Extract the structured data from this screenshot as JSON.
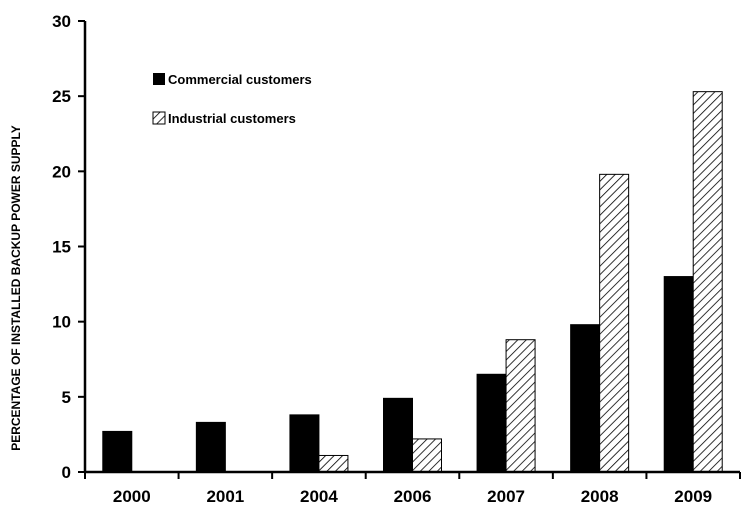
{
  "chart_data": {
    "type": "bar",
    "title": "",
    "xlabel": "",
    "ylabel": "PERCENTAGE OF INSTALLED BACKUP POWER SUPPLY",
    "ylim": [
      0,
      30
    ],
    "yticks": [
      "0",
      "5",
      "10",
      "15",
      "20",
      "25",
      "30"
    ],
    "grid": false,
    "legend_position": "top-left",
    "categories": [
      "2000",
      "2001",
      "2004",
      "2006",
      "2007",
      "2008",
      "2009"
    ],
    "series": [
      {
        "name": "Commercial customers",
        "values": [
          2.7,
          3.3,
          3.8,
          4.9,
          6.5,
          9.8,
          13.0
        ],
        "color": "#000000",
        "pattern": "solid"
      },
      {
        "name": "Industrial customers",
        "values": [
          0,
          0,
          1.1,
          2.2,
          8.8,
          19.8,
          25.3
        ],
        "color": "#ffffff",
        "pattern": "diagonal-hatch"
      }
    ]
  }
}
